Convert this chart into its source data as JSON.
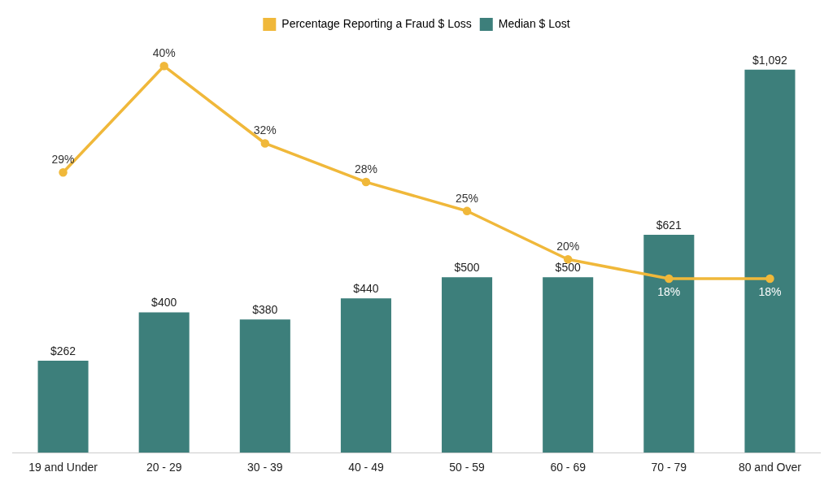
{
  "chart_data": {
    "type": "bar",
    "categories": [
      "19 and Under",
      "20 - 29",
      "30 - 39",
      "40 - 49",
      "50 - 59",
      "60 - 69",
      "70 - 79",
      "80 and Over"
    ],
    "series": [
      {
        "name": "Percentage Reporting a Fraud $ Loss",
        "type": "line",
        "axis": "y2",
        "color": "#f0b83a",
        "values": [
          29,
          40,
          32,
          28,
          25,
          20,
          18,
          18
        ],
        "value_labels": [
          "29%",
          "40%",
          "32%",
          "28%",
          "25%",
          "20%",
          "18%",
          "18%"
        ]
      },
      {
        "name": "Median $ Lost",
        "color": "#3d7f7b",
        "values": [
          262,
          400,
          380,
          440,
          500,
          500,
          621,
          1092
        ],
        "value_labels": [
          "$262",
          "$400",
          "$380",
          "$440",
          "$500",
          "$500",
          "$621",
          "$1,092"
        ]
      }
    ],
    "legend": "top",
    "marker": "circle",
    "grid": false
  }
}
